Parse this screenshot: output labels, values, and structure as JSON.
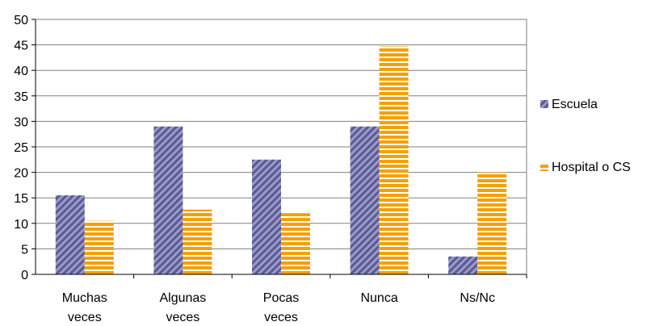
{
  "chart_data": {
    "type": "bar",
    "categories": [
      [
        "Muchas",
        "veces"
      ],
      [
        "Algunas",
        "veces"
      ],
      [
        "Pocas",
        "veces"
      ],
      [
        "Nunca"
      ],
      [
        "Ns/Nc"
      ]
    ],
    "series": [
      {
        "name": "Escuela",
        "values": [
          15.5,
          29,
          22.5,
          29,
          3.5
        ],
        "color": "#7b7bb0",
        "pattern": "diagonal-hatch"
      },
      {
        "name": "Hospital o CS",
        "values": [
          10.5,
          12.7,
          12,
          44.7,
          20
        ],
        "color": "#f5a000",
        "pattern": "horizontal-stripes"
      }
    ],
    "ylim": [
      0,
      50
    ],
    "yticks": [
      0,
      5,
      10,
      15,
      20,
      25,
      30,
      35,
      40,
      45,
      50
    ],
    "grid": true,
    "legend": "right",
    "title": "",
    "xlabel": "",
    "ylabel": ""
  }
}
